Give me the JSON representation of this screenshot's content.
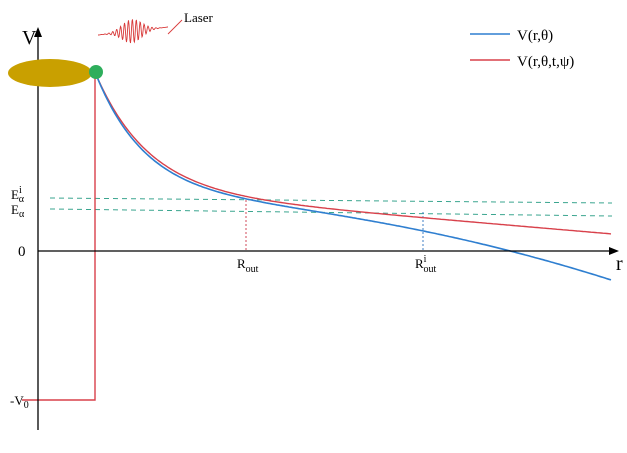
{
  "diagram": {
    "laser_label": "Laser",
    "y_axis_label": "V",
    "x_axis_label": "r",
    "zero_label": "0",
    "depth_label": {
      "prefix": "-V",
      "subscript": "0"
    },
    "energy_levels": [
      {
        "base": "E",
        "subscript": "α",
        "superscript": "i",
        "color": "#3aa58f"
      },
      {
        "base": "E",
        "subscript": "α",
        "superscript": "",
        "color": "#3aa58f"
      }
    ],
    "radius_markers": [
      {
        "base": "R",
        "subscript": "out",
        "superscript": "",
        "color": "#d0485a"
      },
      {
        "base": "R",
        "subscript": "out",
        "superscript": "i",
        "color": "#3f7fc4"
      }
    ],
    "legend": [
      {
        "label": "V(r,θ)",
        "color": "#2f7fd0"
      },
      {
        "label": "V(r,θ,t,ψ)",
        "color": "#d8404a"
      }
    ],
    "colors": {
      "nucleus": "#c9a000",
      "particle": "#2eae5c",
      "laser": "#d83a3a",
      "axis": "#000000"
    }
  }
}
